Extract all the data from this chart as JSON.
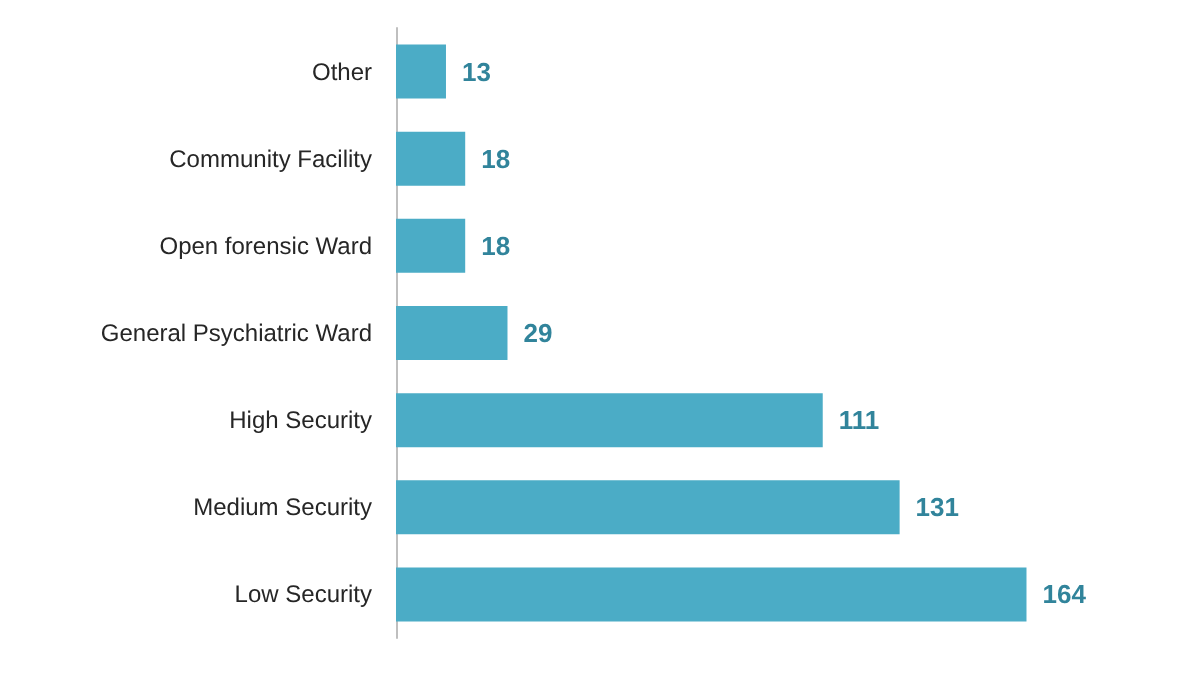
{
  "chart_data": {
    "type": "bar",
    "orientation": "horizontal",
    "categories": [
      "Other",
      "Community Facility",
      "Open forensic Ward",
      "General Psychiatric Ward",
      "High Security",
      "Medium Security",
      "Low Security"
    ],
    "values": [
      13,
      18,
      18,
      29,
      111,
      131,
      164
    ],
    "color": "#4bacc6",
    "data_labels": true
  }
}
